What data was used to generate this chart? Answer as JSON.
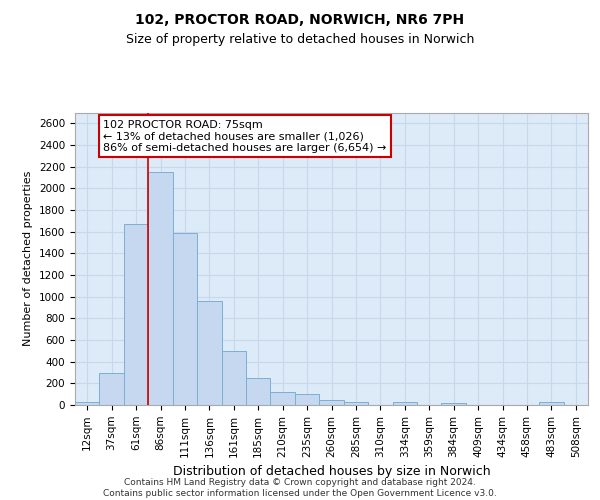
{
  "title1": "102, PROCTOR ROAD, NORWICH, NR6 7PH",
  "title2": "Size of property relative to detached houses in Norwich",
  "xlabel": "Distribution of detached houses by size in Norwich",
  "ylabel": "Number of detached properties",
  "categories": [
    "12sqm",
    "37sqm",
    "61sqm",
    "86sqm",
    "111sqm",
    "136sqm",
    "161sqm",
    "185sqm",
    "210sqm",
    "235sqm",
    "260sqm",
    "285sqm",
    "310sqm",
    "334sqm",
    "359sqm",
    "384sqm",
    "409sqm",
    "434sqm",
    "458sqm",
    "483sqm",
    "508sqm"
  ],
  "values": [
    25,
    300,
    1670,
    2150,
    1590,
    960,
    500,
    250,
    120,
    100,
    50,
    30,
    0,
    30,
    0,
    20,
    0,
    0,
    0,
    25,
    0
  ],
  "bar_color": "#c5d8f0",
  "bar_edge_color": "#7aafd4",
  "vline_x_idx": 3,
  "vline_color": "#cc0000",
  "annotation_text": "102 PROCTOR ROAD: 75sqm\n← 13% of detached houses are smaller (1,026)\n86% of semi-detached houses are larger (6,654) →",
  "annotation_box_color": "#ffffff",
  "annotation_box_edge": "#cc0000",
  "ylim": [
    0,
    2700
  ],
  "yticks": [
    0,
    200,
    400,
    600,
    800,
    1000,
    1200,
    1400,
    1600,
    1800,
    2000,
    2200,
    2400,
    2600
  ],
  "grid_color": "#c8d8ec",
  "plot_bg_color": "#ddeaf7",
  "fig_bg_color": "#ffffff",
  "footer1": "Contains HM Land Registry data © Crown copyright and database right 2024.",
  "footer2": "Contains public sector information licensed under the Open Government Licence v3.0.",
  "title1_fontsize": 10,
  "title2_fontsize": 9,
  "xlabel_fontsize": 9,
  "ylabel_fontsize": 8,
  "tick_fontsize": 7.5,
  "footer_fontsize": 6.5,
  "annotation_fontsize": 8
}
